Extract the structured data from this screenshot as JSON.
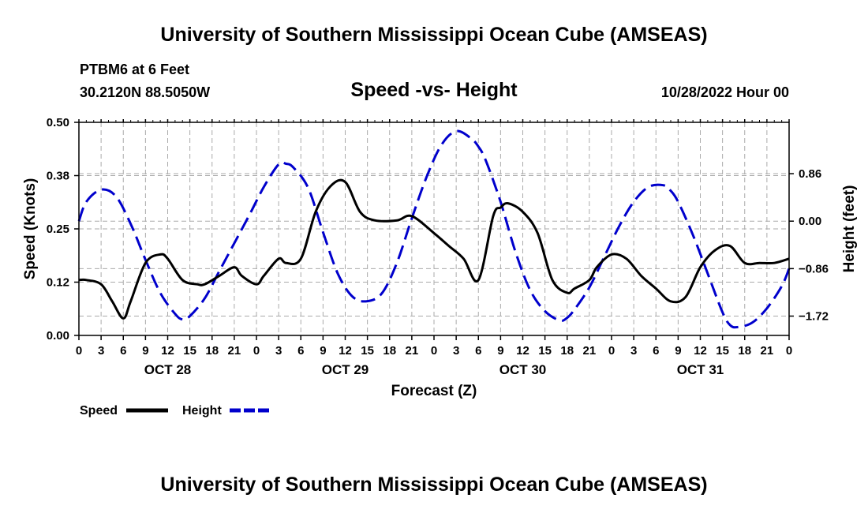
{
  "header": {
    "main_title": "University of Southern Mississippi Ocean Cube (AMSEAS)",
    "station": "PTBM6 at 6 Feet",
    "coords": "30.2120N  88.5050W",
    "timestamp": "10/28/2022 Hour 00"
  },
  "footer": {
    "repeat_title": "University of Southern Mississippi Ocean Cube (AMSEAS)"
  },
  "colors": {
    "speed": "#000000",
    "height": "#0000cc",
    "grid": "#aaaaaa"
  },
  "chart_data": {
    "type": "line",
    "title": "Speed -vs- Height",
    "xlabel": "Forecast (Z)",
    "ylabel": "Speed (Knots)",
    "y2label": "Height (feet)",
    "x_range": [
      0,
      96
    ],
    "ylim": [
      0,
      0.5
    ],
    "y2lim": [
      -2.07,
      1.79
    ],
    "y_ticks": [
      "0.00",
      "0.12",
      "0.25",
      "0.38",
      "0.50"
    ],
    "y2_ticks": [
      "0.86",
      "0.00",
      "−0.86",
      "−1.72"
    ],
    "y2_tick_values": [
      0.86,
      0.0,
      -0.86,
      -1.72
    ],
    "x_ticks": [
      "0",
      "3",
      "6",
      "9",
      "12",
      "15",
      "18",
      "21",
      "0",
      "3",
      "6",
      "9",
      "12",
      "15",
      "18",
      "21",
      "0",
      "3",
      "6",
      "9",
      "12",
      "15",
      "18",
      "21",
      "0",
      "3",
      "6",
      "9",
      "12",
      "15",
      "18",
      "21",
      "0"
    ],
    "day_labels": [
      {
        "label": "OCT 28",
        "x": 12
      },
      {
        "label": "OCT 29",
        "x": 36
      },
      {
        "label": "OCT 30",
        "x": 60
      },
      {
        "label": "OCT 31",
        "x": 84
      }
    ],
    "legend": [
      {
        "name": "Speed",
        "style": "solid"
      },
      {
        "name": "Height",
        "style": "dashed"
      }
    ],
    "series": [
      {
        "name": "Speed",
        "axis": "left",
        "x": [
          0,
          1,
          3,
          4.5,
          6,
          7,
          9,
          11,
          12,
          14,
          16,
          17,
          19,
          21,
          22,
          24,
          25,
          27,
          28,
          30,
          32,
          34,
          36,
          38,
          40,
          43,
          45,
          48,
          50,
          52,
          54,
          56,
          57,
          58,
          60,
          62,
          64,
          66,
          67,
          69,
          70,
          72,
          74,
          76,
          78,
          80,
          82,
          84,
          86,
          88,
          90,
          92,
          94,
          96
        ],
        "values": [
          0.13,
          0.13,
          0.12,
          0.08,
          0.04,
          0.08,
          0.17,
          0.19,
          0.18,
          0.13,
          0.12,
          0.12,
          0.14,
          0.16,
          0.14,
          0.12,
          0.14,
          0.18,
          0.17,
          0.18,
          0.29,
          0.35,
          0.36,
          0.29,
          0.27,
          0.27,
          0.28,
          0.24,
          0.21,
          0.18,
          0.13,
          0.28,
          0.3,
          0.31,
          0.29,
          0.24,
          0.13,
          0.1,
          0.11,
          0.13,
          0.16,
          0.19,
          0.18,
          0.14,
          0.11,
          0.08,
          0.09,
          0.16,
          0.2,
          0.21,
          0.17,
          0.17,
          0.17,
          0.18
        ]
      },
      {
        "name": "Height",
        "axis": "right",
        "x": [
          0,
          1,
          3,
          5,
          7,
          9,
          11,
          13,
          14,
          15,
          17,
          19,
          21,
          23,
          25,
          27,
          28,
          29,
          31,
          33,
          35,
          37,
          39,
          41,
          43,
          45,
          47,
          49,
          51,
          53,
          54,
          55,
          57,
          59,
          61,
          63,
          65,
          66,
          67,
          69,
          71,
          73,
          75,
          77,
          79,
          80,
          81,
          83,
          85,
          87,
          88,
          89,
          91,
          93,
          95,
          96
        ],
        "values": [
          0.0,
          0.35,
          0.57,
          0.45,
          -0.05,
          -0.7,
          -1.3,
          -1.68,
          -1.78,
          -1.72,
          -1.4,
          -0.9,
          -0.4,
          0.1,
          0.62,
          1.03,
          1.04,
          0.97,
          0.6,
          -0.2,
          -0.95,
          -1.37,
          -1.45,
          -1.3,
          -0.75,
          0.05,
          0.8,
          1.38,
          1.63,
          1.5,
          1.35,
          1.1,
          0.35,
          -0.55,
          -1.25,
          -1.63,
          -1.8,
          -1.75,
          -1.6,
          -1.2,
          -0.65,
          -0.1,
          0.35,
          0.62,
          0.65,
          0.55,
          0.35,
          -0.25,
          -0.95,
          -1.65,
          -1.88,
          -1.92,
          -1.84,
          -1.58,
          -1.18,
          -0.86
        ]
      }
    ]
  }
}
